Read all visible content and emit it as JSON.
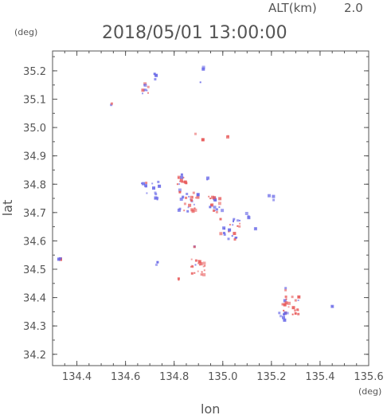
{
  "header": {
    "alt_label": "ALT(km)",
    "alt_value": "2.0",
    "datetime": "2018/05/01 13:00:00"
  },
  "chart_data": {
    "type": "scatter",
    "title": "2018/05/01 13:00:00",
    "xlabel": "lon",
    "ylabel": "lat",
    "x_unit": "(deg)",
    "y_unit": "(deg)",
    "xlim": [
      134.3,
      135.6
    ],
    "ylim": [
      34.16,
      35.27
    ],
    "x_ticks": [
      134.4,
      134.6,
      134.8,
      135.0,
      135.2,
      135.4,
      135.6
    ],
    "x_tick_labels": [
      "134.4",
      "134.6",
      "134.8",
      "135.0",
      "135.2",
      "135.4",
      "135.6"
    ],
    "y_ticks": [
      34.2,
      34.3,
      34.4,
      34.5,
      34.6,
      34.7,
      34.8,
      34.9,
      35.0,
      35.1,
      35.2
    ],
    "y_tick_labels": [
      "34.2",
      "34.3",
      "34.4",
      "34.5",
      "34.6",
      "34.7",
      "34.8",
      "34.9",
      "35.0",
      "35.1",
      "35.2"
    ],
    "grid": false,
    "colors": {
      "positive": "#e85a5a",
      "negative": "#6a6ae8",
      "axis": "#555555"
    },
    "clusters": [
      {
        "lon": 134.33,
        "lat": 34.54,
        "spread": 0.008,
        "n": 4,
        "sign": "negative"
      },
      {
        "lon": 134.545,
        "lat": 35.08,
        "spread": 0.005,
        "n": 2,
        "sign": "negative"
      },
      {
        "lon": 134.68,
        "lat": 35.135,
        "spread": 0.02,
        "n": 10,
        "sign": "mixed"
      },
      {
        "lon": 134.72,
        "lat": 35.18,
        "spread": 0.01,
        "n": 3,
        "sign": "negative"
      },
      {
        "lon": 134.92,
        "lat": 35.21,
        "spread": 0.006,
        "n": 2,
        "sign": "negative"
      },
      {
        "lon": 134.91,
        "lat": 35.16,
        "spread": 0.004,
        "n": 1,
        "sign": "negative"
      },
      {
        "lon": 134.89,
        "lat": 34.975,
        "spread": 0.004,
        "n": 1,
        "sign": "positive"
      },
      {
        "lon": 134.92,
        "lat": 34.955,
        "spread": 0.005,
        "n": 2,
        "sign": "positive"
      },
      {
        "lon": 135.02,
        "lat": 34.965,
        "spread": 0.006,
        "n": 2,
        "sign": "positive"
      },
      {
        "lon": 134.83,
        "lat": 34.815,
        "spread": 0.02,
        "n": 14,
        "sign": "mixed"
      },
      {
        "lon": 134.7,
        "lat": 34.77,
        "spread": 0.04,
        "n": 16,
        "sign": "negative"
      },
      {
        "lon": 134.86,
        "lat": 34.74,
        "spread": 0.04,
        "n": 30,
        "sign": "mixed"
      },
      {
        "lon": 134.97,
        "lat": 34.73,
        "spread": 0.03,
        "n": 18,
        "sign": "mixed"
      },
      {
        "lon": 135.03,
        "lat": 34.64,
        "spread": 0.04,
        "n": 24,
        "sign": "mixed"
      },
      {
        "lon": 135.1,
        "lat": 34.69,
        "spread": 0.01,
        "n": 3,
        "sign": "negative"
      },
      {
        "lon": 135.13,
        "lat": 34.64,
        "spread": 0.006,
        "n": 2,
        "sign": "negative"
      },
      {
        "lon": 134.94,
        "lat": 34.82,
        "spread": 0.005,
        "n": 2,
        "sign": "negative"
      },
      {
        "lon": 135.2,
        "lat": 34.75,
        "spread": 0.01,
        "n": 3,
        "sign": "mixed"
      },
      {
        "lon": 134.9,
        "lat": 34.51,
        "spread": 0.03,
        "n": 22,
        "sign": "positive"
      },
      {
        "lon": 134.88,
        "lat": 34.58,
        "spread": 0.005,
        "n": 2,
        "sign": "negative"
      },
      {
        "lon": 134.73,
        "lat": 34.52,
        "spread": 0.006,
        "n": 2,
        "sign": "negative"
      },
      {
        "lon": 134.82,
        "lat": 34.465,
        "spread": 0.006,
        "n": 2,
        "sign": "positive"
      },
      {
        "lon": 135.28,
        "lat": 34.37,
        "spread": 0.035,
        "n": 24,
        "sign": "positive"
      },
      {
        "lon": 135.25,
        "lat": 34.34,
        "spread": 0.02,
        "n": 8,
        "sign": "negative"
      },
      {
        "lon": 135.26,
        "lat": 34.43,
        "spread": 0.006,
        "n": 2,
        "sign": "negative"
      },
      {
        "lon": 135.45,
        "lat": 34.365,
        "spread": 0.006,
        "n": 3,
        "sign": "negative"
      }
    ]
  }
}
